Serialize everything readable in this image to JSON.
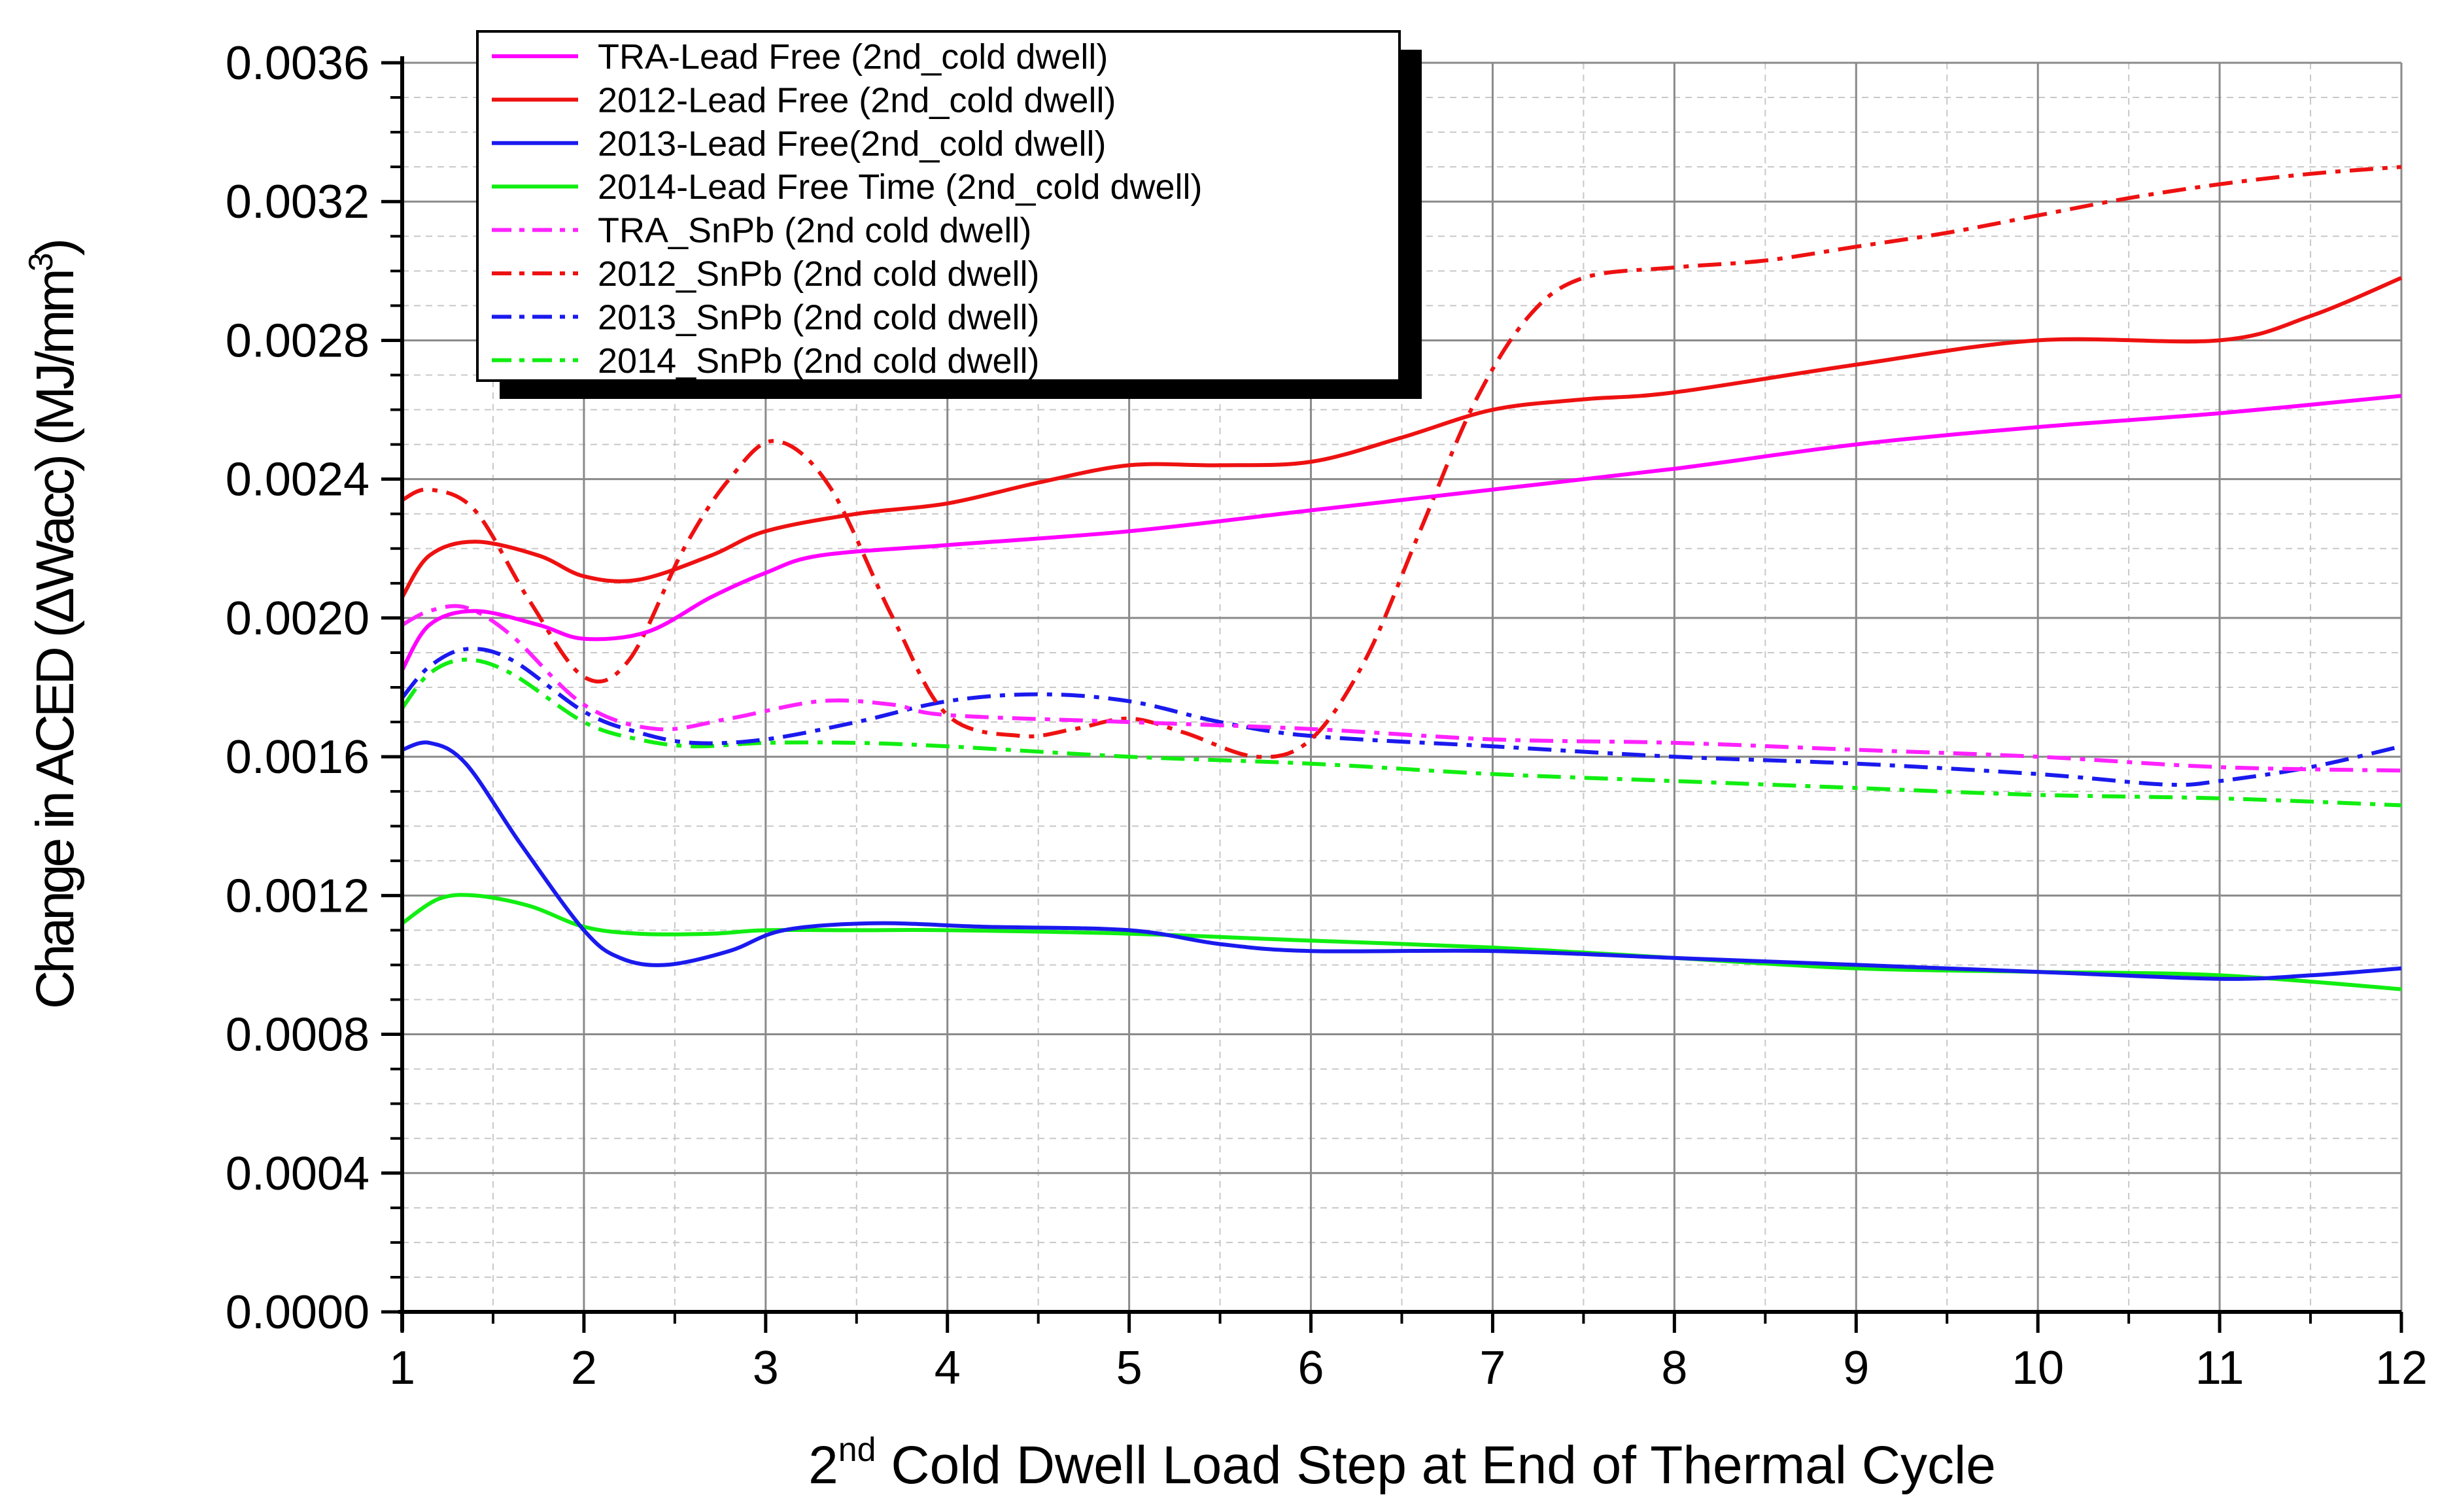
{
  "chart_data": {
    "type": "line",
    "title": "",
    "xlabel": {
      "prefix": "2",
      "superscript": "nd",
      "text": " Cold Dwell Load Step at End of Thermal Cycle"
    },
    "ylabel": {
      "text": "Change in ACED (ΔWacc) (MJ/mm",
      "superscript": "3",
      "suffix": ")"
    },
    "xlim": [
      1,
      12
    ],
    "ylim": [
      0,
      0.0036
    ],
    "xticks": [
      "1",
      "2",
      "3",
      "4",
      "5",
      "6",
      "7",
      "8",
      "9",
      "10",
      "11",
      "12"
    ],
    "yticks": [
      "0.0000",
      "0.0004",
      "0.0008",
      "0.0012",
      "0.0016",
      "0.0020",
      "0.0024",
      "0.0028",
      "0.0032",
      "0.0036"
    ],
    "grid": true,
    "legend_position": "top-left",
    "series": [
      {
        "name": "TRA-Lead Free (2nd_cold dwell)",
        "color": "#ff00ff",
        "style": "solid",
        "x": [
          1,
          1.15,
          1.4,
          1.75,
          2.0,
          2.35,
          2.7,
          3.0,
          3.3,
          4.0,
          5.0,
          6.0,
          7.0,
          8.0,
          9.0,
          10.0,
          11.0,
          12.0
        ],
        "y": [
          0.00185,
          0.00198,
          0.00202,
          0.00198,
          0.00194,
          0.00196,
          0.00206,
          0.00213,
          0.00218,
          0.00221,
          0.00225,
          0.00231,
          0.00237,
          0.00243,
          0.0025,
          0.00255,
          0.00259,
          0.00264
        ]
      },
      {
        "name": "2012-Lead Free (2nd_cold dwell)",
        "color": "#ee1111",
        "style": "solid",
        "x": [
          1,
          1.15,
          1.4,
          1.75,
          2.0,
          2.3,
          2.7,
          3.0,
          3.5,
          4.0,
          4.5,
          5.0,
          5.5,
          6.0,
          6.5,
          7.0,
          7.5,
          8.0,
          9.0,
          10.0,
          11.0,
          11.5,
          12.0
        ],
        "y": [
          0.00206,
          0.00218,
          0.00222,
          0.00218,
          0.00212,
          0.00211,
          0.00218,
          0.00225,
          0.0023,
          0.00233,
          0.00239,
          0.00244,
          0.00244,
          0.00245,
          0.00252,
          0.0026,
          0.00263,
          0.00265,
          0.00273,
          0.0028,
          0.0028,
          0.00287,
          0.00298
        ]
      },
      {
        "name": "2013-Lead Free(2nd_cold dwell)",
        "color": "#1a1aee",
        "style": "solid",
        "x": [
          1,
          1.15,
          1.35,
          1.65,
          2.0,
          2.2,
          2.45,
          2.8,
          3.1,
          3.6,
          4.2,
          5.0,
          5.5,
          6.0,
          7.0,
          8.0,
          9.0,
          10.0,
          11.0,
          11.5,
          12.0
        ],
        "y": [
          0.00162,
          0.00164,
          0.00158,
          0.00135,
          0.0011,
          0.00102,
          0.001,
          0.00104,
          0.0011,
          0.00112,
          0.00111,
          0.0011,
          0.00106,
          0.00104,
          0.00104,
          0.00102,
          0.001,
          0.00098,
          0.00096,
          0.00097,
          0.00099
        ]
      },
      {
        "name": "2014-Lead Free  Time (2nd_cold dwell)",
        "color": "#11ee11",
        "style": "solid",
        "x": [
          1,
          1.2,
          1.4,
          1.7,
          2.0,
          2.3,
          2.7,
          3.0,
          3.5,
          4.0,
          5.0,
          6.0,
          7.0,
          8.0,
          9.0,
          10.0,
          11.0,
          12.0
        ],
        "y": [
          0.00112,
          0.00119,
          0.0012,
          0.00117,
          0.00111,
          0.00109,
          0.00109,
          0.0011,
          0.0011,
          0.0011,
          0.00109,
          0.00107,
          0.00105,
          0.00102,
          0.00099,
          0.00098,
          0.00097,
          0.00093
        ]
      },
      {
        "name": "TRA_SnPb (2nd cold dwell)",
        "color": "#ff22ff",
        "style": "dashdot",
        "x": [
          1,
          1.15,
          1.35,
          1.6,
          2.0,
          2.4,
          2.8,
          3.3,
          3.7,
          4.0,
          5.0,
          6.0,
          7.0,
          8.0,
          9.0,
          10.0,
          11.0,
          12.0
        ],
        "y": [
          0.00198,
          0.00202,
          0.00203,
          0.00195,
          0.00175,
          0.00168,
          0.00171,
          0.00176,
          0.00175,
          0.00172,
          0.0017,
          0.00168,
          0.00165,
          0.00164,
          0.00162,
          0.0016,
          0.00157,
          0.00156
        ]
      },
      {
        "name": "2012_SnPb (2nd cold dwell)",
        "color": "#ee1111",
        "style": "dashdot",
        "x": [
          1,
          1.15,
          1.4,
          1.7,
          2.0,
          2.25,
          2.55,
          2.8,
          3.05,
          3.35,
          3.7,
          4.0,
          4.4,
          4.7,
          5.0,
          5.3,
          5.7,
          6.0,
          6.3,
          6.6,
          6.9,
          7.2,
          7.5,
          8.0,
          8.5,
          9.0,
          9.5,
          10.0,
          10.5,
          11.0,
          11.5,
          12.0
        ],
        "y": [
          0.00234,
          0.00237,
          0.00231,
          0.00205,
          0.00183,
          0.00188,
          0.0022,
          0.0024,
          0.00251,
          0.00238,
          0.002,
          0.00172,
          0.00166,
          0.00168,
          0.00171,
          0.00167,
          0.0016,
          0.00165,
          0.00188,
          0.00225,
          0.00262,
          0.00287,
          0.00298,
          0.00301,
          0.00303,
          0.00307,
          0.00311,
          0.00316,
          0.00321,
          0.00325,
          0.00328,
          0.0033
        ]
      },
      {
        "name": "2013_SnPb (2nd cold dwell)",
        "color": "#1a1aee",
        "style": "dashdot",
        "x": [
          1,
          1.15,
          1.35,
          1.6,
          2.0,
          2.3,
          2.6,
          3.0,
          3.5,
          4.0,
          4.5,
          5.0,
          5.5,
          6.0,
          7.0,
          8.0,
          9.0,
          10.0,
          10.7,
          11.0,
          11.5,
          12.0
        ],
        "y": [
          0.00177,
          0.00186,
          0.00191,
          0.00188,
          0.00173,
          0.00167,
          0.00164,
          0.00165,
          0.0017,
          0.00176,
          0.00178,
          0.00176,
          0.0017,
          0.00166,
          0.00163,
          0.0016,
          0.00158,
          0.00155,
          0.00152,
          0.00153,
          0.00157,
          0.00163
        ]
      },
      {
        "name": "2014_SnPb (2nd cold dwell)",
        "color": "#11ee11",
        "style": "dashdot",
        "x": [
          1,
          1.15,
          1.35,
          1.6,
          2.0,
          2.3,
          2.6,
          3.0,
          3.5,
          4.0,
          5.0,
          6.0,
          7.0,
          8.0,
          9.0,
          10.0,
          11.0,
          12.0
        ],
        "y": [
          0.00174,
          0.00184,
          0.00188,
          0.00184,
          0.0017,
          0.00165,
          0.00163,
          0.00164,
          0.00164,
          0.00163,
          0.0016,
          0.00158,
          0.00155,
          0.00153,
          0.00151,
          0.00149,
          0.00148,
          0.00146
        ]
      }
    ]
  }
}
